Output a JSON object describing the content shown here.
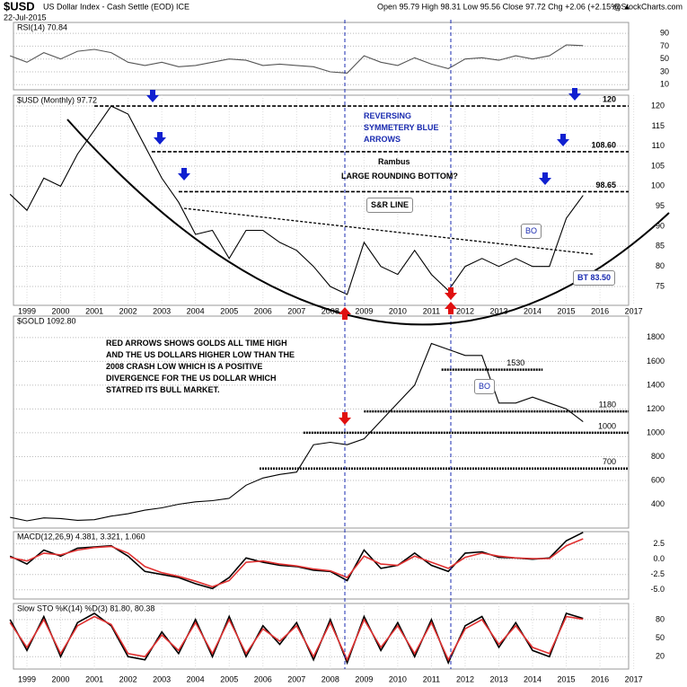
{
  "header": {
    "symbol": "$USD",
    "name": "US Dollar Index - Cash Settle (EOD) ICE",
    "date": "22-Jul-2015",
    "quote": "Open 95.79  High 98.31  Low 95.56  Close 97.72  Chg +2.06 (+2.15%) ▲",
    "source": "@StockCharts.com"
  },
  "chart_data": [
    {
      "type": "line",
      "title": "RSI(14) 70.84",
      "x": [
        1998.5,
        1999,
        1999.5,
        2000,
        2000.5,
        2001,
        2001.5,
        2002,
        2002.5,
        2003,
        2003.5,
        2004,
        2004.5,
        2005,
        2005.5,
        2006,
        2006.5,
        2007,
        2007.5,
        2008,
        2008.5,
        2009,
        2009.5,
        2010,
        2010.5,
        2011,
        2011.5,
        2012,
        2012.5,
        2013,
        2013.5,
        2014,
        2014.5,
        2015,
        2015.5
      ],
      "series": [
        {
          "name": "RSI(14)",
          "color": "#555555",
          "values": [
            55,
            45,
            60,
            50,
            62,
            65,
            60,
            45,
            40,
            45,
            38,
            40,
            45,
            50,
            48,
            40,
            42,
            40,
            38,
            30,
            28,
            55,
            45,
            40,
            52,
            42,
            35,
            50,
            52,
            48,
            55,
            50,
            55,
            72,
            70.84
          ]
        }
      ],
      "xlim": [
        1998.6,
        2016.85
      ],
      "ylim": [
        2,
        107
      ],
      "yticks": [
        10,
        30,
        50,
        70,
        90
      ],
      "grid": true
    },
    {
      "type": "line",
      "title": "$USD (Monthly) 97.72",
      "x": [
        1998.5,
        1999,
        1999.5,
        2000,
        2000.5,
        2001,
        2001.5,
        2002,
        2002.5,
        2003,
        2003.5,
        2004,
        2004.5,
        2005,
        2005.5,
        2006,
        2006.5,
        2007,
        2007.5,
        2008,
        2008.5,
        2009,
        2009.5,
        2010,
        2010.5,
        2011,
        2011.5,
        2012,
        2012.5,
        2013,
        2013.5,
        2014,
        2014.5,
        2015,
        2015.5
      ],
      "series": [
        {
          "name": "$USD",
          "color": "#000000",
          "values": [
            98,
            94,
            102,
            100,
            108,
            114,
            120,
            118,
            110,
            102,
            96,
            88,
            89,
            82,
            89,
            89,
            86,
            84,
            80,
            75,
            73,
            86,
            80,
            78,
            84,
            78,
            74,
            80,
            82,
            80,
            82,
            80,
            80,
            92,
            97.72
          ]
        }
      ],
      "xlim": [
        1998.6,
        2016.85
      ],
      "ylim": [
        70.3,
        122.7
      ],
      "yticks": [
        75,
        80,
        85,
        90,
        95,
        100,
        105,
        110,
        115,
        120
      ],
      "xticks": [
        1999,
        2000,
        2001,
        2002,
        2003,
        2004,
        2005,
        2006,
        2007,
        2008,
        2009,
        2010,
        2011,
        2012,
        2013,
        2014,
        2015,
        2016,
        2017
      ],
      "grid": true,
      "levels": [
        120,
        {
          "value": 108.6,
          "label": "108.60"
        },
        98.65
      ],
      "annotations": [
        "REVERSING SYMMETERY BLUE ARROWS",
        "Rambus",
        "LARGE ROUNDING BOTTOM?",
        "S&R LINE",
        "BO",
        "BT 83.50"
      ]
    },
    {
      "type": "line",
      "title": "$GOLD 1092.80",
      "x": [
        1998.5,
        1999,
        1999.5,
        2000,
        2000.5,
        2001,
        2001.5,
        2002,
        2002.5,
        2003,
        2003.5,
        2004,
        2004.5,
        2005,
        2005.5,
        2006,
        2006.5,
        2007,
        2007.5,
        2008,
        2008.5,
        2009,
        2009.5,
        2010,
        2010.5,
        2011,
        2011.5,
        2012,
        2012.5,
        2013,
        2013.5,
        2014,
        2014.5,
        2015,
        2015.5
      ],
      "series": [
        {
          "name": "$GOLD",
          "color": "#000000",
          "values": [
            290,
            260,
            285,
            280,
            265,
            270,
            300,
            320,
            350,
            370,
            400,
            420,
            430,
            450,
            560,
            620,
            650,
            670,
            900,
            920,
            900,
            950,
            1100,
            1250,
            1400,
            1750,
            1700,
            1650,
            1650,
            1250,
            1250,
            1300,
            1250,
            1200,
            1092.8
          ]
        }
      ],
      "xlim": [
        1998.6,
        2016.85
      ],
      "ylim": [
        200,
        1980
      ],
      "yticks": [
        400,
        600,
        800,
        1000,
        1200,
        1400,
        1600,
        1800
      ],
      "grid": true,
      "levels": [
        1530,
        1180,
        1000,
        700
      ],
      "annotations": [
        "RED ARROWS SHOWS GOLDS ALL TIME HIGH AND THE US DOLLARS HIGHER LOW THAN THE 2008 CRASH LOW WHICH IS A POSITIVE DIVERGENCE FOR THE US DOLLAR WHICH STATRED ITS BULL MARKET.",
        "BO"
      ]
    },
    {
      "type": "line",
      "title": "MACD(12,26,9) 4.381, 3.321, 1.060",
      "x": [
        1998.5,
        1999,
        1999.5,
        2000,
        2000.5,
        2001,
        2001.5,
        2002,
        2002.5,
        2003,
        2003.5,
        2004,
        2004.5,
        2005,
        2005.5,
        2006,
        2006.5,
        2007,
        2007.5,
        2008,
        2008.5,
        2009,
        2009.5,
        2010,
        2010.5,
        2011,
        2011.5,
        2012,
        2012.5,
        2013,
        2013.5,
        2014,
        2014.5,
        2015,
        2015.5
      ],
      "series": [
        {
          "name": "MACD",
          "color": "#000000",
          "values": [
            0.5,
            -0.8,
            1.5,
            0.5,
            1.8,
            2.0,
            2.2,
            0.5,
            -2.0,
            -2.5,
            -3.0,
            -4.0,
            -4.8,
            -3.0,
            0.2,
            -0.5,
            -1.0,
            -1.2,
            -1.8,
            -2.0,
            -3.5,
            1.5,
            -1.5,
            -1.0,
            1.0,
            -1.0,
            -2.0,
            1.0,
            1.2,
            0.3,
            0.2,
            0.0,
            0.2,
            3.0,
            4.381
          ]
        },
        {
          "name": "Signal",
          "color": "#e03030",
          "values": [
            0.3,
            -0.3,
            1.0,
            0.7,
            1.5,
            1.9,
            2.1,
            1.0,
            -1.2,
            -2.2,
            -2.8,
            -3.6,
            -4.5,
            -3.5,
            -0.5,
            -0.3,
            -0.8,
            -1.1,
            -1.6,
            -1.9,
            -3.0,
            0.5,
            -0.8,
            -1.0,
            0.5,
            -0.5,
            -1.5,
            0.3,
            1.0,
            0.5,
            0.2,
            0.1,
            0.1,
            2.2,
            3.321
          ]
        }
      ],
      "xlim": [
        1998.6,
        2016.85
      ],
      "ylim": [
        -6.5,
        4.5
      ],
      "yticks": [
        2.5,
        {
          "value": 0,
          "label": "0.0"
        },
        -2.5,
        {
          "value": -5,
          "label": "-5.0"
        }
      ],
      "grid": true
    },
    {
      "type": "line",
      "title": "Slow STO %K(14) %D(3) 81.80, 80.38",
      "x": [
        1998.5,
        1999,
        1999.5,
        2000,
        2000.5,
        2001,
        2001.5,
        2002,
        2002.5,
        2003,
        2003.5,
        2004,
        2004.5,
        2005,
        2005.5,
        2006,
        2006.5,
        2007,
        2007.5,
        2008,
        2008.5,
        2009,
        2009.5,
        2010,
        2010.5,
        2011,
        2011.5,
        2012,
        2012.5,
        2013,
        2013.5,
        2014,
        2014.5,
        2015,
        2015.5
      ],
      "series": [
        {
          "name": "%K",
          "color": "#000000",
          "values": [
            80,
            30,
            85,
            20,
            75,
            90,
            70,
            20,
            15,
            60,
            25,
            80,
            20,
            85,
            20,
            70,
            40,
            75,
            15,
            80,
            10,
            85,
            30,
            75,
            20,
            80,
            10,
            70,
            85,
            35,
            75,
            30,
            20,
            90,
            81.8
          ]
        },
        {
          "name": "%D",
          "color": "#e03030",
          "values": [
            75,
            35,
            80,
            25,
            70,
            85,
            72,
            25,
            20,
            55,
            30,
            75,
            25,
            80,
            25,
            65,
            45,
            70,
            20,
            75,
            15,
            80,
            35,
            70,
            25,
            75,
            15,
            65,
            80,
            40,
            70,
            35,
            25,
            85,
            80.38
          ]
        }
      ],
      "xlim": [
        1998.6,
        2016.85
      ],
      "ylim": [
        0,
        106
      ],
      "yticks": [
        20,
        50,
        80
      ],
      "xticks": [
        1999,
        2000,
        2001,
        2002,
        2003,
        2004,
        2005,
        2006,
        2007,
        2008,
        2009,
        2010,
        2011,
        2012,
        2013,
        2014,
        2015,
        2016,
        2017
      ],
      "grid": true
    }
  ]
}
